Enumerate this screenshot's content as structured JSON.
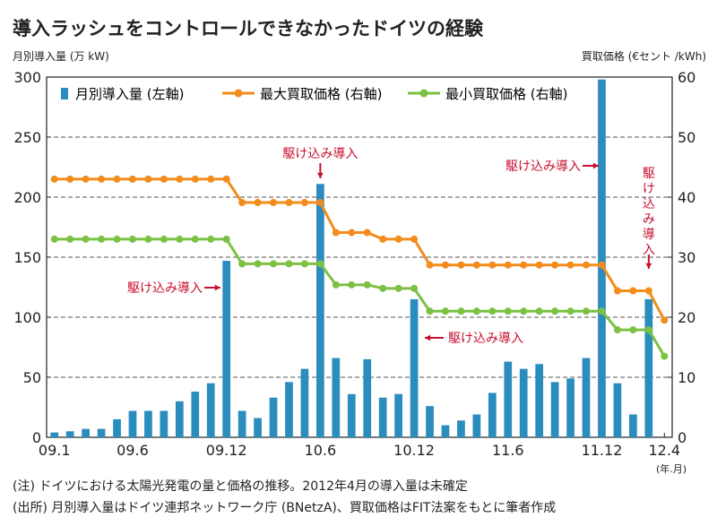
{
  "title": "導入ラッシュをコントロールできなかったドイツの経験",
  "left_unit": "月別導入量 (万 kW)",
  "right_unit": "買取価格 (€セント /kWh)",
  "x_unit": "(年.月)",
  "notes": [
    "(注) ドイツにおける太陽光発電の量と価格の推移。2012年4月の導入量は未確定",
    "(出所) 月別導入量はドイツ連邦ネットワーク庁 (BNetzA)、買取価格はFIT法案をもとに筆者作成"
  ],
  "annotations": [
    "駆け込み導入",
    "駆け込み導入",
    "駆け込み導入",
    "駆け込み導入",
    "駆け込み導入"
  ],
  "colors": {
    "bar": "#2b8cbe",
    "max": "#f28c1d",
    "min": "#7cc142",
    "annotation": "#c8102e",
    "grid": "#555555"
  },
  "chart_data": {
    "type": "bar+line",
    "x": [
      "09.1",
      "09.2",
      "09.3",
      "09.4",
      "09.5",
      "09.6",
      "09.7",
      "09.8",
      "09.9",
      "09.10",
      "09.11",
      "09.12",
      "10.1",
      "10.2",
      "10.3",
      "10.4",
      "10.5",
      "10.6",
      "10.7",
      "10.8",
      "10.9",
      "10.10",
      "10.11",
      "10.12",
      "11.1",
      "11.2",
      "11.3",
      "11.4",
      "11.5",
      "11.6",
      "11.7",
      "11.8",
      "11.9",
      "11.10",
      "11.11",
      "11.12",
      "12.1",
      "12.2",
      "12.3",
      "12.4"
    ],
    "x_tick_labels": [
      "09.1",
      "09.6",
      "09.12",
      "10.6",
      "10.12",
      "11.6",
      "11.12",
      "12.4"
    ],
    "y_left": {
      "lim": [
        0,
        300
      ],
      "ticks": [
        0,
        50,
        100,
        150,
        200,
        250,
        300
      ]
    },
    "y_right": {
      "lim": [
        0,
        60
      ],
      "ticks": [
        0,
        10,
        20,
        30,
        40,
        50,
        60
      ]
    },
    "grid": true,
    "legend_position": "top",
    "series": [
      {
        "name": "月別導入量 (左軸)",
        "type": "bar",
        "axis": "left",
        "values": [
          4,
          5,
          7,
          7,
          15,
          22,
          22,
          22,
          30,
          38,
          45,
          147,
          22,
          16,
          33,
          46,
          57,
          211,
          66,
          36,
          65,
          33,
          36,
          115,
          26,
          10,
          14,
          19,
          37,
          63,
          57,
          61,
          46,
          49,
          66,
          298,
          45,
          19,
          115,
          null
        ]
      },
      {
        "name": "最大買取価格 (右軸)",
        "type": "line",
        "axis": "right",
        "values": [
          43.0,
          43.0,
          43.0,
          43.0,
          43.0,
          43.0,
          43.0,
          43.0,
          43.0,
          43.0,
          43.0,
          43.0,
          39.1,
          39.1,
          39.1,
          39.1,
          39.1,
          39.1,
          34.1,
          34.1,
          34.1,
          33.0,
          33.0,
          33.0,
          28.7,
          28.7,
          28.7,
          28.7,
          28.7,
          28.7,
          28.7,
          28.7,
          28.7,
          28.7,
          28.7,
          28.7,
          24.4,
          24.4,
          24.4,
          19.5
        ]
      },
      {
        "name": "最小買取価格 (右軸)",
        "type": "line",
        "axis": "right",
        "values": [
          33.0,
          33.0,
          33.0,
          33.0,
          33.0,
          33.0,
          33.0,
          33.0,
          33.0,
          33.0,
          33.0,
          33.0,
          28.9,
          28.9,
          28.9,
          28.9,
          28.9,
          28.9,
          25.4,
          25.4,
          25.4,
          24.8,
          24.8,
          24.8,
          21.0,
          21.0,
          21.0,
          21.0,
          21.0,
          21.0,
          21.0,
          21.0,
          21.0,
          21.0,
          21.0,
          21.0,
          17.9,
          17.9,
          17.9,
          13.5
        ]
      }
    ]
  }
}
